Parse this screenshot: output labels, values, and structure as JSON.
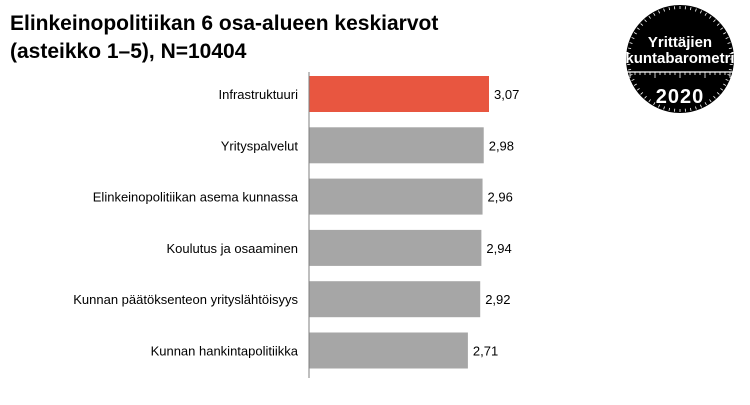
{
  "chart_data": {
    "type": "bar",
    "orientation": "horizontal",
    "title_lines": [
      "Elinkeinopolitiikan 6 osa-alueen keskiarvot",
      "(asteikko 1–5), N=10404"
    ],
    "categories": [
      "Infrastruktuuri",
      "Yrityspalvelut",
      "Elinkeinopolitiikan asema kunnassa",
      "Koulutus ja osaaminen",
      "Kunnan päätöksenteon yrityslähtöisyys",
      "Kunnan hankintapolitiikka"
    ],
    "values": [
      3.07,
      2.98,
      2.96,
      2.94,
      2.92,
      2.71
    ],
    "value_labels": [
      "3,07",
      "2,98",
      "2,96",
      "2,94",
      "2,92",
      "2,71"
    ],
    "highlight_index": 0,
    "colors": {
      "highlight": "#e85640",
      "default": "#a6a6a6",
      "axis": "#7f7f7f"
    },
    "xlim": [
      0,
      5
    ],
    "grid": false,
    "legend": "none"
  },
  "logo": {
    "line1": "Yrittäjien",
    "line2": "kuntabarometri",
    "year": "2020",
    "background": "#000000",
    "text_color": "#ffffff"
  }
}
